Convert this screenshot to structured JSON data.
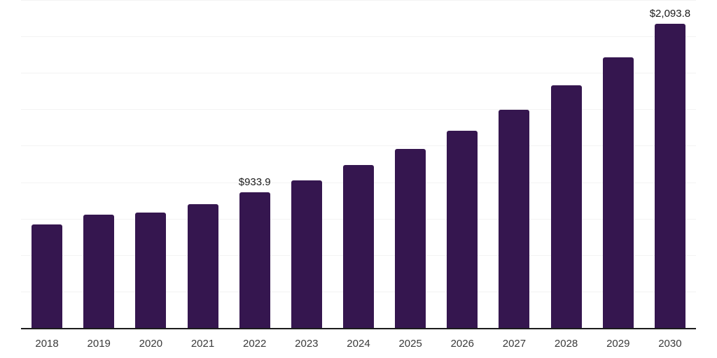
{
  "chart_data": {
    "type": "bar",
    "title": "",
    "xlabel": "",
    "ylabel": "",
    "categories": [
      "2018",
      "2019",
      "2020",
      "2021",
      "2022",
      "2023",
      "2024",
      "2025",
      "2026",
      "2027",
      "2028",
      "2029",
      "2030"
    ],
    "values": [
      713,
      781,
      796,
      855,
      933.9,
      1016,
      1124,
      1234,
      1359,
      1500,
      1671,
      1863,
      2093.8
    ],
    "value_labels": [
      {
        "category": "2022",
        "text": "$933.9"
      },
      {
        "category": "2030",
        "text": "$2,093.8"
      }
    ],
    "ylim": [
      0,
      2250
    ],
    "grid_step": 250,
    "grid": true,
    "legend": false,
    "bar_color": "#35164F",
    "gridline_color": "#F3F3F3",
    "axis_color": "#1C1C1C",
    "value_label_color": "#1A1A1A",
    "tick_label_color": "#3A3A3A"
  }
}
